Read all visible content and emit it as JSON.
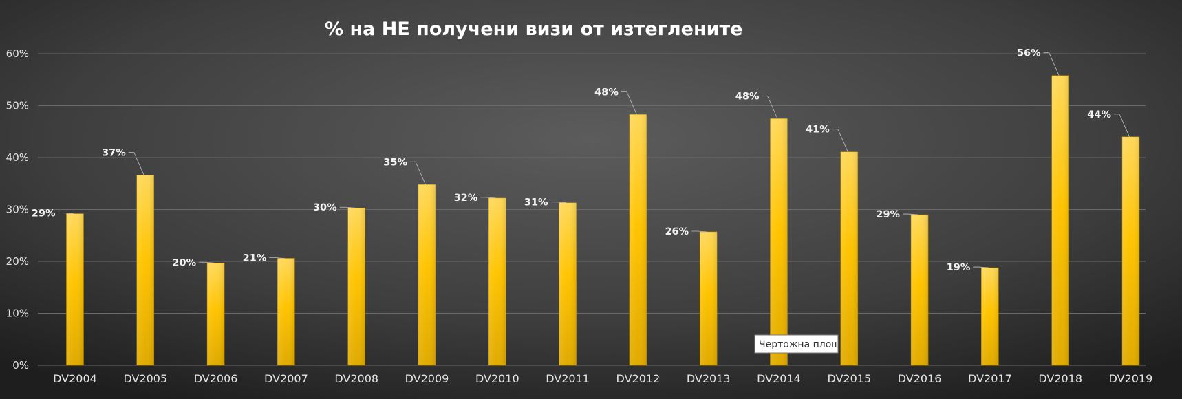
{
  "chart_data": {
    "type": "bar",
    "title": "% на НЕ получени визи от изтеглените",
    "categories": [
      "DV2004",
      "DV2005",
      "DV2006",
      "DV2007",
      "DV2008",
      "DV2009",
      "DV2010",
      "DV2011",
      "DV2012",
      "DV2013",
      "DV2014",
      "DV2015",
      "DV2016",
      "DV2017",
      "DV2018",
      "DV2019"
    ],
    "values": [
      29.2,
      36.6,
      19.7,
      20.6,
      30.3,
      34.8,
      32.2,
      31.3,
      48.3,
      25.7,
      47.5,
      41.1,
      29.0,
      18.8,
      55.8,
      44.0
    ],
    "data_labels": [
      "29%",
      "37%",
      "20%",
      "21%",
      "30%",
      "35%",
      "32%",
      "31%",
      "48%",
      "26%",
      "48%",
      "41%",
      "29%",
      "19%",
      "56%",
      "44%"
    ],
    "yticks": [
      "0%",
      "10%",
      "20%",
      "30%",
      "40%",
      "50%",
      "60%"
    ],
    "ylim": [
      0,
      60
    ],
    "grid": true,
    "legend": "none",
    "colors": {
      "bar_top": "#ffd85a",
      "bar_mid": "#ffc400",
      "bar_bottom": "#e0aa00",
      "background_center": "#5a5a5a",
      "background_edge": "#1f1f1f",
      "gridline": "#6a6a6a",
      "leader_line": "#bfbfbf"
    }
  },
  "tooltip": {
    "text": "Чертожна площ"
  }
}
